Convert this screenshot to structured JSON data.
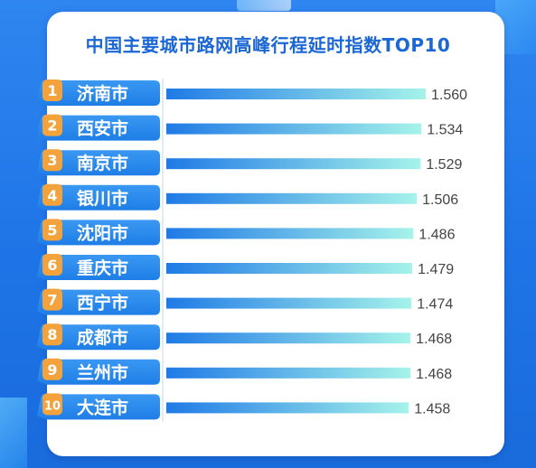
{
  "chart_data": {
    "type": "bar",
    "orientation": "horizontal",
    "title": "中国主要城市路网高峰行程延时指数TOP10",
    "categories": [
      "济南市",
      "西安市",
      "南京市",
      "银川市",
      "沈阳市",
      "重庆市",
      "西宁市",
      "成都市",
      "兰州市",
      "大连市"
    ],
    "ranks": [
      "1",
      "2",
      "3",
      "4",
      "5",
      "6",
      "7",
      "8",
      "9",
      "10"
    ],
    "values": [
      1.56,
      1.534,
      1.529,
      1.506,
      1.486,
      1.479,
      1.474,
      1.468,
      1.468,
      1.458
    ],
    "value_labels": [
      "1.560",
      "1.534",
      "1.529",
      "1.506",
      "1.486",
      "1.479",
      "1.474",
      "1.468",
      "1.468",
      "1.458"
    ],
    "xlabel": "",
    "ylabel": "",
    "grid": false,
    "legend": "none"
  },
  "colors": {
    "title": "#1b67d6",
    "label_fill": "#2b8bec",
    "label_text": "#ffffff",
    "rank_badge": "#f4a23b",
    "bar_start": "#1f7ae6",
    "bar_end": "#a6f3ea",
    "value_text": "#444444",
    "axis_line": "#c9d6e6"
  }
}
